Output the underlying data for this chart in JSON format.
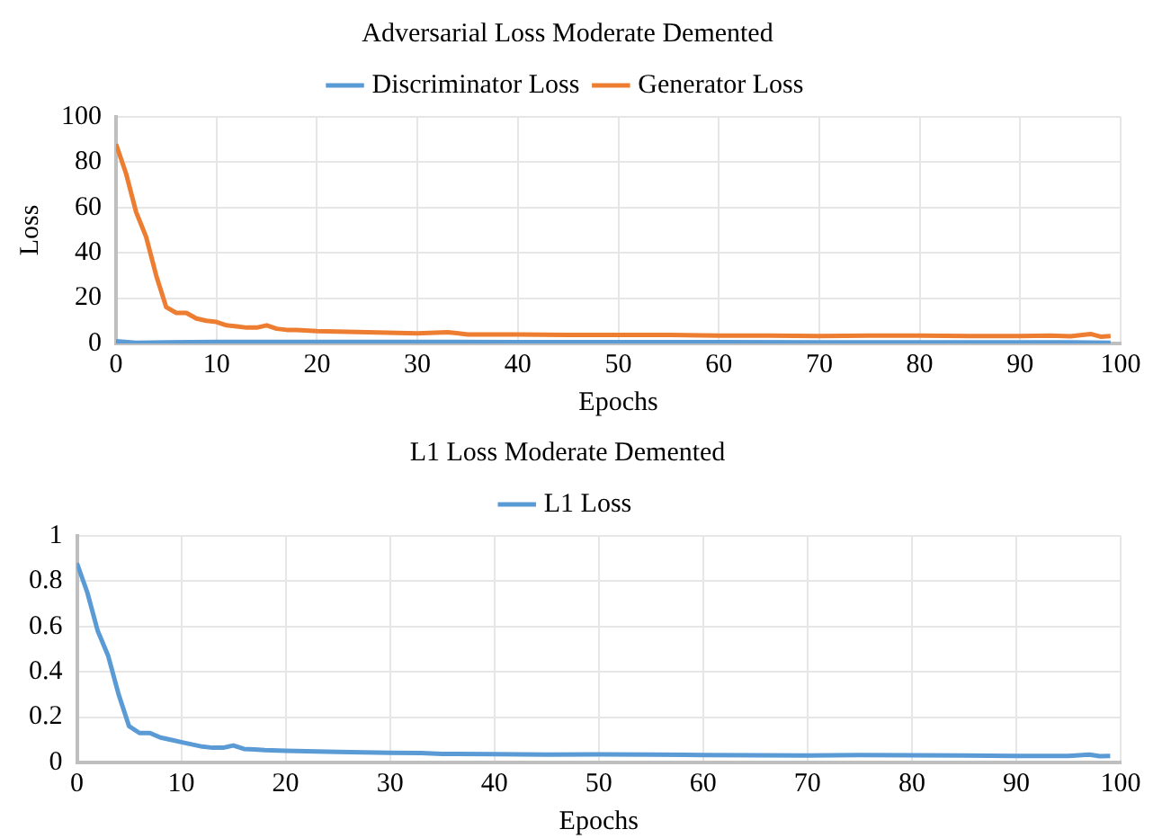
{
  "chart_data": [
    {
      "type": "line",
      "title": "Adversarial Loss Moderate Demented",
      "xlabel": "Epochs",
      "ylabel": "Loss",
      "xlim": [
        0,
        100
      ],
      "xticks": [
        0,
        10,
        20,
        30,
        40,
        50,
        60,
        70,
        80,
        90,
        100
      ],
      "ylim": [
        0,
        100
      ],
      "yticks": [
        0,
        20,
        40,
        60,
        80,
        100
      ],
      "grid": true,
      "legend": "top",
      "marker": "none",
      "line_style": "solid",
      "series": [
        {
          "name": "Discriminator Loss",
          "color": "#5b9bd5",
          "x": [
            0,
            2,
            5,
            10,
            20,
            30,
            40,
            50,
            60,
            70,
            80,
            90,
            95,
            99
          ],
          "values": [
            1,
            0.3,
            0.5,
            0.7,
            0.7,
            0.7,
            0.6,
            0.6,
            0.6,
            0.5,
            0.5,
            0.5,
            0.5,
            0.3
          ]
        },
        {
          "name": "Generator Loss",
          "color": "#ed7d31",
          "x": [
            0,
            1,
            2,
            3,
            4,
            5,
            6,
            7,
            8,
            9,
            10,
            11,
            12,
            13,
            14,
            15,
            16,
            17,
            18,
            20,
            25,
            30,
            33,
            35,
            40,
            45,
            50,
            55,
            60,
            65,
            70,
            75,
            80,
            85,
            90,
            93,
            95,
            97,
            98,
            99
          ],
          "values": [
            88,
            75,
            58,
            47,
            30,
            16,
            13.5,
            13.5,
            11,
            10,
            9.5,
            8,
            7.5,
            7,
            7,
            8,
            6.5,
            6,
            6,
            5.5,
            5,
            4.5,
            5,
            4,
            4,
            3.8,
            3.8,
            3.8,
            3.5,
            3.5,
            3.3,
            3.5,
            3.5,
            3.3,
            3.3,
            3.5,
            3.2,
            4.2,
            3,
            3.3
          ]
        }
      ]
    },
    {
      "type": "line",
      "title": "L1 Loss Moderate Demented",
      "xlabel": "Epochs",
      "xlim": [
        0,
        100
      ],
      "xticks": [
        0,
        10,
        20,
        30,
        40,
        50,
        60,
        70,
        80,
        90,
        100
      ],
      "ylim": [
        0,
        1
      ],
      "yticks": [
        0,
        0.2,
        0.4,
        0.6,
        0.8,
        1
      ],
      "grid": true,
      "legend": "top",
      "marker": "none",
      "line_style": "solid",
      "series": [
        {
          "name": "L1 Loss",
          "color": "#5b9bd5",
          "x": [
            0,
            1,
            2,
            3,
            4,
            5,
            6,
            7,
            8,
            9,
            10,
            11,
            12,
            13,
            14,
            15,
            16,
            17,
            18,
            20,
            25,
            30,
            33,
            35,
            40,
            45,
            50,
            55,
            60,
            65,
            70,
            75,
            80,
            85,
            90,
            95,
            97,
            98,
            99
          ],
          "values": [
            0.88,
            0.75,
            0.58,
            0.47,
            0.3,
            0.16,
            0.13,
            0.13,
            0.11,
            0.1,
            0.09,
            0.08,
            0.07,
            0.065,
            0.065,
            0.075,
            0.06,
            0.058,
            0.055,
            0.052,
            0.047,
            0.043,
            0.042,
            0.038,
            0.037,
            0.035,
            0.036,
            0.035,
            0.033,
            0.032,
            0.031,
            0.033,
            0.032,
            0.031,
            0.029,
            0.029,
            0.035,
            0.028,
            0.029
          ]
        }
      ]
    }
  ]
}
